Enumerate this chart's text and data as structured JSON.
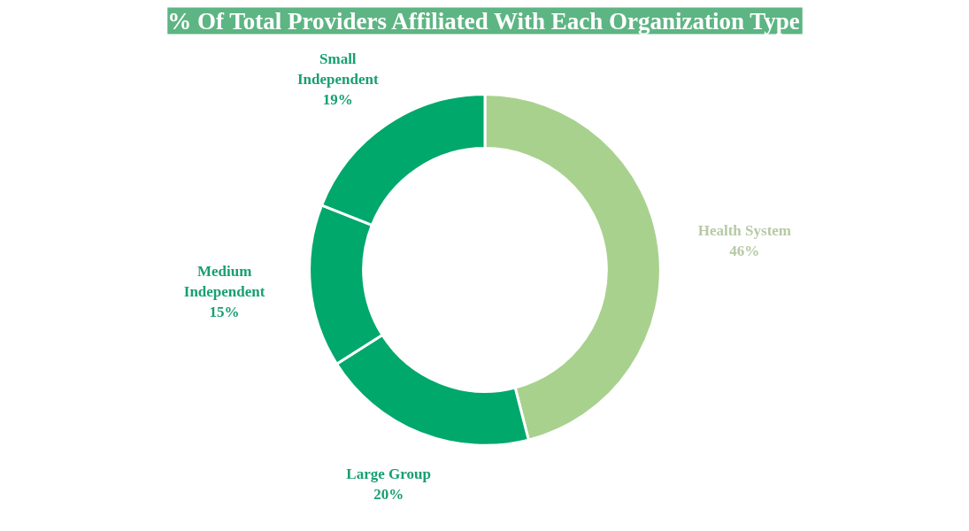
{
  "chart_data": {
    "type": "donut",
    "title": "% Of Total Providers Affiliated With Each Organization Type",
    "categories": [
      "Health System",
      "Large Group",
      "Medium Independent",
      "Small Independent"
    ],
    "values": [
      46,
      20,
      15,
      19
    ],
    "colors": [
      "#a9d18e",
      "#00a86b",
      "#00a86b",
      "#00a86b"
    ],
    "value_labels": [
      "46%",
      "20%",
      "15%",
      "19%"
    ]
  }
}
